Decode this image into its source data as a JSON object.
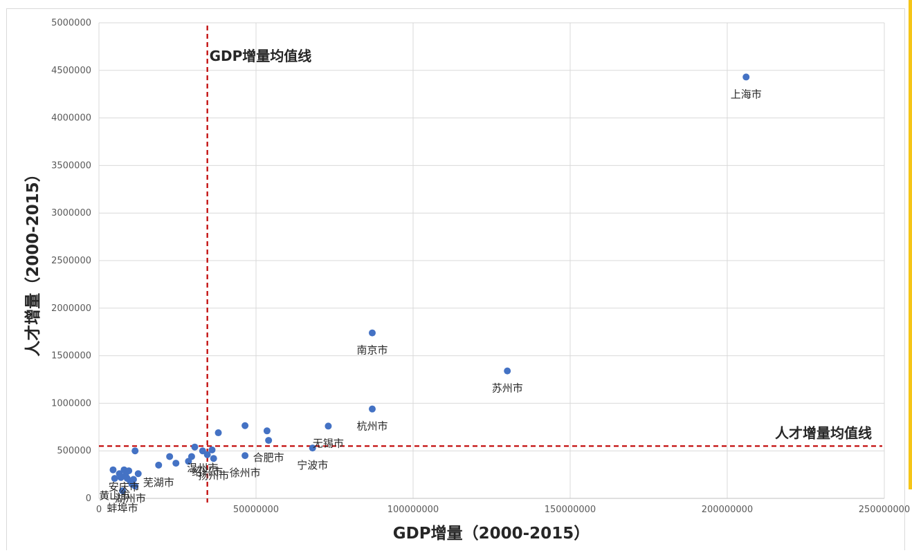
{
  "chart_data": {
    "type": "scatter",
    "xlabel": "GDP增量（2000-2015）",
    "ylabel": "人才增量（2000-2015）",
    "xlim": [
      0,
      250000000
    ],
    "ylim": [
      0,
      5000000
    ],
    "xticks": [
      "0",
      "50000000",
      "100000000",
      "150000000",
      "200000000",
      "250000000"
    ],
    "yticks": [
      "0",
      "500000",
      "1000000",
      "1500000",
      "2000000",
      "2500000",
      "3000000",
      "3500000",
      "4000000",
      "4500000",
      "5000000"
    ],
    "grid": true,
    "reference_lines": [
      {
        "axis": "x",
        "value": 34500000,
        "label": "GDP增量均值线",
        "color": "#c00000",
        "style": "dashed"
      },
      {
        "axis": "y",
        "value": 550000,
        "label": "人才增量均值线",
        "color": "#c00000",
        "style": "dashed"
      }
    ],
    "marker_color": "#4472c4",
    "points": [
      {
        "x": 206000000,
        "y": 4430000,
        "label": "上海市"
      },
      {
        "x": 87000000,
        "y": 1740000,
        "label": "南京市"
      },
      {
        "x": 130000000,
        "y": 1340000,
        "label": "苏州市"
      },
      {
        "x": 87000000,
        "y": 940000,
        "label": "杭州市"
      },
      {
        "x": 73000000,
        "y": 760000,
        "label": "无锡市"
      },
      {
        "x": 68000000,
        "y": 530000,
        "label": "宁波市"
      },
      {
        "x": 54000000,
        "y": 610000,
        "label": "合肥市"
      },
      {
        "x": 46500000,
        "y": 450000,
        "label": "徐州市"
      },
      {
        "x": 33000000,
        "y": 500000,
        "label": "温州市"
      },
      {
        "x": 36500000,
        "y": 420000,
        "label": "扬州市"
      },
      {
        "x": 34500000,
        "y": 460000,
        "label": "绍兴市"
      },
      {
        "x": 19000000,
        "y": 350000,
        "label": "芜湖市"
      },
      {
        "x": 8000000,
        "y": 300000,
        "label": "安庆市"
      },
      {
        "x": 10000000,
        "y": 180000,
        "label": "湖州市"
      },
      {
        "x": 5000000,
        "y": 210000,
        "label": "黄山市"
      },
      {
        "x": 7500000,
        "y": 80000,
        "label": "蚌埠市"
      },
      {
        "x": 46500000,
        "y": 765000,
        "label": ""
      },
      {
        "x": 53500000,
        "y": 710000,
        "label": ""
      },
      {
        "x": 38000000,
        "y": 690000,
        "label": ""
      },
      {
        "x": 30500000,
        "y": 540000,
        "label": ""
      },
      {
        "x": 36000000,
        "y": 510000,
        "label": ""
      },
      {
        "x": 11500000,
        "y": 500000,
        "label": ""
      },
      {
        "x": 22500000,
        "y": 440000,
        "label": ""
      },
      {
        "x": 29500000,
        "y": 440000,
        "label": ""
      },
      {
        "x": 28500000,
        "y": 390000,
        "label": ""
      },
      {
        "x": 24500000,
        "y": 370000,
        "label": ""
      },
      {
        "x": 4500000,
        "y": 300000,
        "label": ""
      },
      {
        "x": 12500000,
        "y": 260000,
        "label": ""
      },
      {
        "x": 9500000,
        "y": 290000,
        "label": ""
      },
      {
        "x": 7000000,
        "y": 220000,
        "label": ""
      },
      {
        "x": 9000000,
        "y": 210000,
        "label": ""
      },
      {
        "x": 11000000,
        "y": 200000,
        "label": ""
      },
      {
        "x": 10500000,
        "y": 150000,
        "label": ""
      },
      {
        "x": 11500000,
        "y": 130000,
        "label": ""
      },
      {
        "x": 8500000,
        "y": 240000,
        "label": ""
      },
      {
        "x": 6500000,
        "y": 260000,
        "label": ""
      }
    ]
  },
  "frame": {
    "accent_color": "#f5c518"
  }
}
